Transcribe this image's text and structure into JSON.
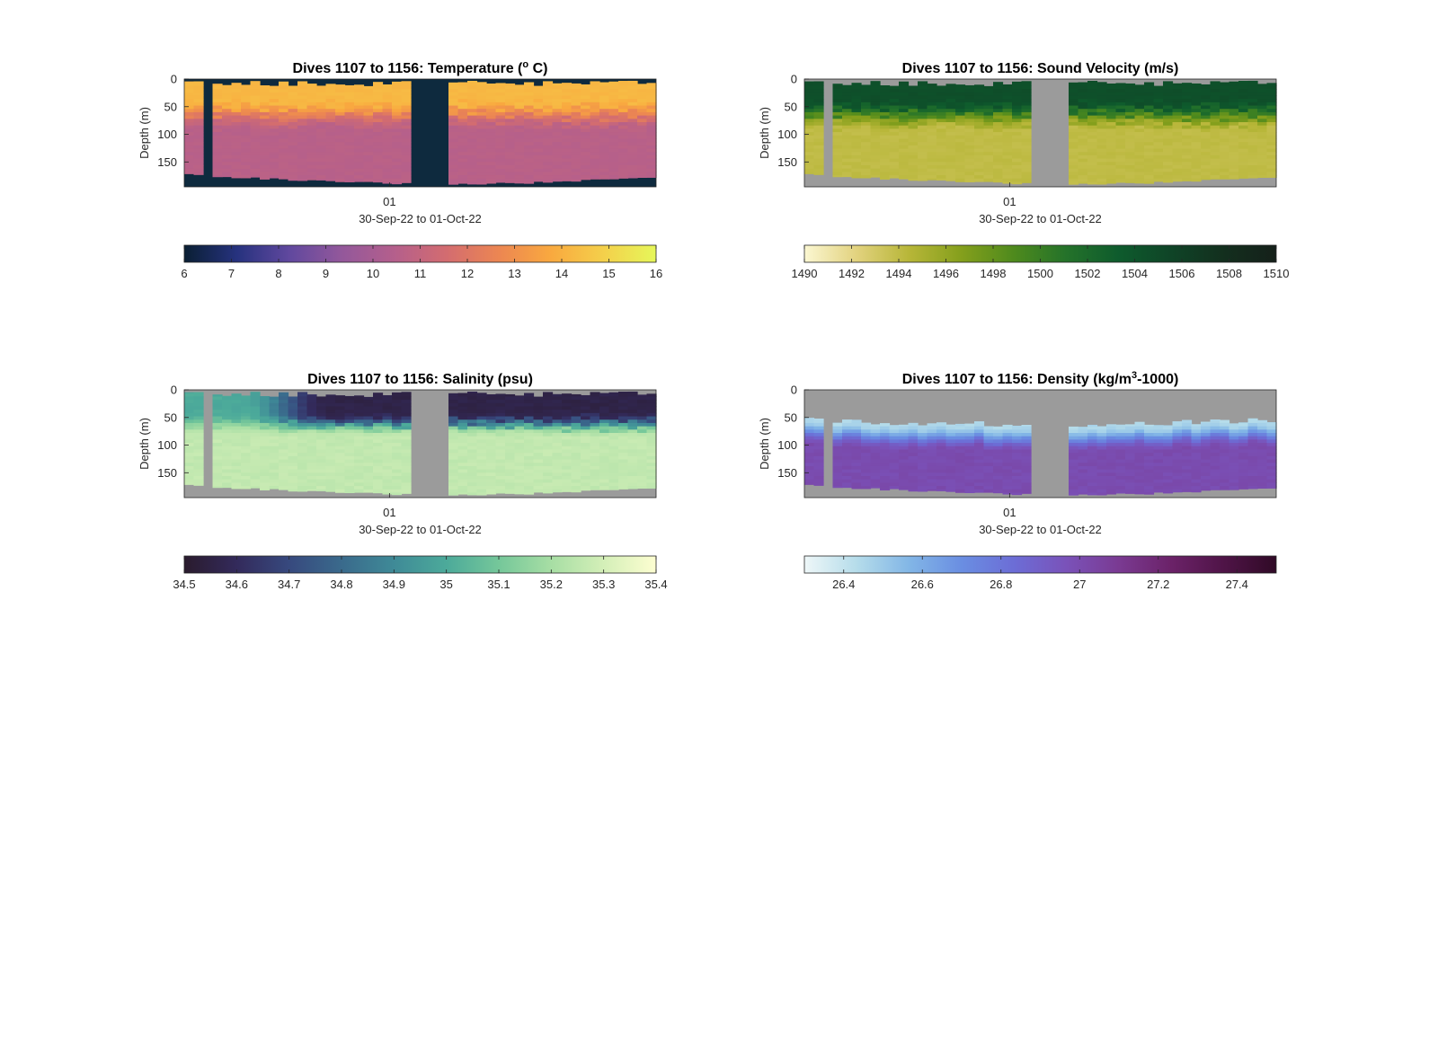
{
  "figure": {
    "background": "#ffffff",
    "no_data_colors": {
      "temperature": "#0e2a3e",
      "others": "#9b9b9b"
    }
  },
  "chart_data": [
    {
      "id": "temperature",
      "type": "heatmap",
      "title": "Dives 1107 to 1156: Temperature (",
      "title_sup": "o",
      "title_end": " C)",
      "ylabel": "Depth (m)",
      "xlabel": "30-Sep-22 to 01-Oct-22",
      "x_tick_labels": [
        "01"
      ],
      "y_tick_labels": [
        "0",
        "50",
        "100",
        "150"
      ],
      "y_ticks": [
        0,
        50,
        100,
        150
      ],
      "ylim": [
        0,
        195
      ],
      "dives": [
        1107,
        1156
      ],
      "gap_dives": [
        [
          1109,
          1109
        ],
        [
          1131,
          1134
        ]
      ],
      "colorbar": {
        "ticks": [
          "6",
          "7",
          "8",
          "9",
          "10",
          "11",
          "12",
          "13",
          "14",
          "15",
          "16"
        ],
        "range": [
          6,
          16
        ],
        "colors": [
          "#0a1f33",
          "#26327e",
          "#60489e",
          "#93589b",
          "#b45f8c",
          "#d36c70",
          "#ec8652",
          "#f9a93f",
          "#f4d04b",
          "#e6f75a"
        ]
      },
      "profile": {
        "surface_value": 14.2,
        "deep_value": 10.6,
        "mixed_layer_m": 35,
        "thermocline_m": 90,
        "max_depth_m": [
          170,
          187
        ]
      }
    },
    {
      "id": "sound_velocity",
      "type": "heatmap",
      "title": "Dives 1107 to 1156: Sound Velocity (m/s)",
      "ylabel": "Depth (m)",
      "xlabel": "30-Sep-22 to 01-Oct-22",
      "x_tick_labels": [
        "01"
      ],
      "y_tick_labels": [
        "0",
        "50",
        "100",
        "150"
      ],
      "y_ticks": [
        0,
        50,
        100,
        150
      ],
      "ylim": [
        0,
        195
      ],
      "dives": [
        1107,
        1156
      ],
      "gap_dives": [
        [
          1109,
          1109
        ],
        [
          1131,
          1134
        ]
      ],
      "colorbar": {
        "ticks": [
          "1490",
          "1492",
          "1494",
          "1496",
          "1498",
          "1500",
          "1502",
          "1504",
          "1506",
          "1508",
          "1510"
        ],
        "range": [
          1490,
          1510
        ],
        "colors": [
          "#fbf7d2",
          "#e2d27e",
          "#b7b638",
          "#849f1c",
          "#4e8a1d",
          "#24722a",
          "#0e5b2d",
          "#0f4427",
          "#132f1e",
          "#15201a"
        ]
      },
      "profile": {
        "surface_value": 1504.5,
        "deep_value": 1494.0,
        "mixed_layer_m": 35,
        "thermocline_m": 90,
        "max_depth_m": [
          170,
          187
        ]
      }
    },
    {
      "id": "salinity",
      "type": "heatmap",
      "title": "Dives 1107 to 1156: Salinity (psu)",
      "ylabel": "Depth (m)",
      "xlabel": "30-Sep-22 to 01-Oct-22",
      "x_tick_labels": [
        "01"
      ],
      "y_tick_labels": [
        "0",
        "50",
        "100",
        "150"
      ],
      "y_ticks": [
        0,
        50,
        100,
        150
      ],
      "ylim": [
        0,
        195
      ],
      "dives": [
        1107,
        1156
      ],
      "gap_dives": [
        [
          1109,
          1109
        ],
        [
          1131,
          1134
        ]
      ],
      "colorbar": {
        "ticks": [
          "34.5",
          "34.6",
          "34.7",
          "34.8",
          "34.9",
          "35",
          "35.1",
          "35.2",
          "35.3",
          "35.4"
        ],
        "range": [
          34.5,
          35.4
        ],
        "colors": [
          "#2a1b2d",
          "#332a5b",
          "#37497e",
          "#3a6a8c",
          "#3f8a97",
          "#4caa9a",
          "#75c79a",
          "#a7dea4",
          "#d4efb8",
          "#fdfed1"
        ]
      },
      "profile": {
        "surface_early": 35.0,
        "surface_late": 34.56,
        "deep_value": 35.26,
        "mixed_layer_m": 40,
        "thermocline_m": 80,
        "max_depth_m": [
          170,
          187
        ]
      }
    },
    {
      "id": "density",
      "type": "heatmap",
      "title": "Dives 1107 to 1156: Density (kg/m",
      "title_sup": "3",
      "title_end": "-1000)",
      "ylabel": "Depth (m)",
      "xlabel": "30-Sep-22 to 01-Oct-22",
      "x_tick_labels": [
        "01"
      ],
      "y_tick_labels": [
        "0",
        "50",
        "100",
        "150"
      ],
      "y_ticks": [
        0,
        50,
        100,
        150
      ],
      "ylim": [
        0,
        195
      ],
      "dives": [
        1107,
        1156
      ],
      "gap_dives": [
        [
          1109,
          1109
        ],
        [
          1131,
          1134
        ]
      ],
      "colorbar": {
        "ticks": [
          "26.4",
          "26.6",
          "26.8",
          "27",
          "27.2",
          "27.4"
        ],
        "tick_values": [
          26.4,
          26.6,
          26.8,
          27.0,
          27.2,
          27.4
        ],
        "range": [
          26.3,
          27.5
        ],
        "colors": [
          "#eef7f8",
          "#b5dcea",
          "#82b6e6",
          "#6a8ee2",
          "#6c6dd6",
          "#7a52b9",
          "#7a3a92",
          "#6b2268",
          "#4f1447",
          "#300a26"
        ]
      },
      "profile": {
        "top_m": [
          50,
          62
        ],
        "surface_value": 26.45,
        "deep_value": 27.0,
        "max_depth_m": [
          170,
          187
        ]
      }
    }
  ]
}
